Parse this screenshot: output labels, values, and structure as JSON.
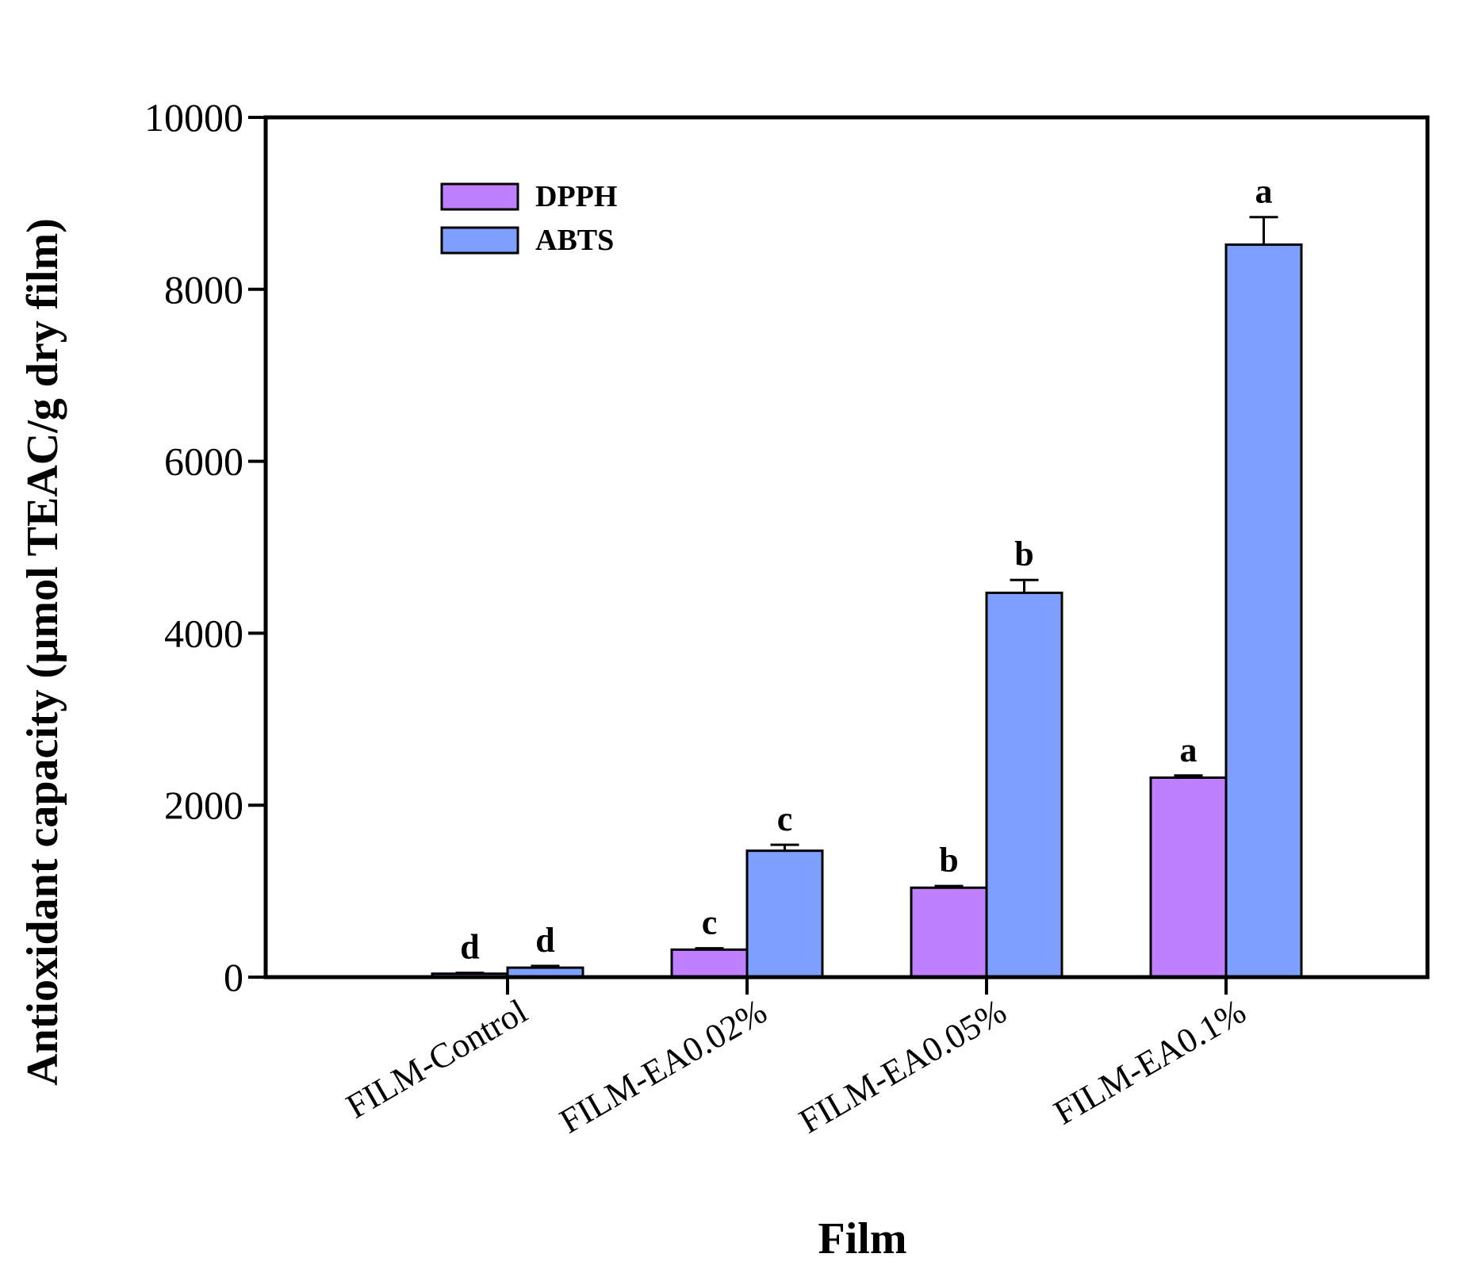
{
  "chart_data": {
    "type": "bar",
    "categories": [
      "FILM-Control",
      "FILM-EA0.02%",
      "FILM-EA0.05%",
      "FILM-EA0.1%"
    ],
    "series": [
      {
        "name": "DPPH",
        "color": "#bf80ff",
        "values": [
          40,
          320,
          1040,
          2320
        ],
        "errors": [
          10,
          15,
          20,
          25
        ],
        "letters": [
          "d",
          "c",
          "b",
          "a"
        ]
      },
      {
        "name": "ABTS",
        "color": "#7f9ffe",
        "values": [
          110,
          1470,
          4470,
          8520
        ],
        "errors": [
          20,
          70,
          150,
          320
        ],
        "letters": [
          "d",
          "c",
          "b",
          "a"
        ]
      }
    ],
    "xlabel": "Film",
    "ylabel": "Antioxidant capacity (µmol TEAC/g dry film)",
    "ylim": [
      0,
      10000
    ],
    "yticks": [
      0,
      2000,
      4000,
      6000,
      8000,
      10000
    ],
    "legend_position": "top-left",
    "grid": false
  }
}
